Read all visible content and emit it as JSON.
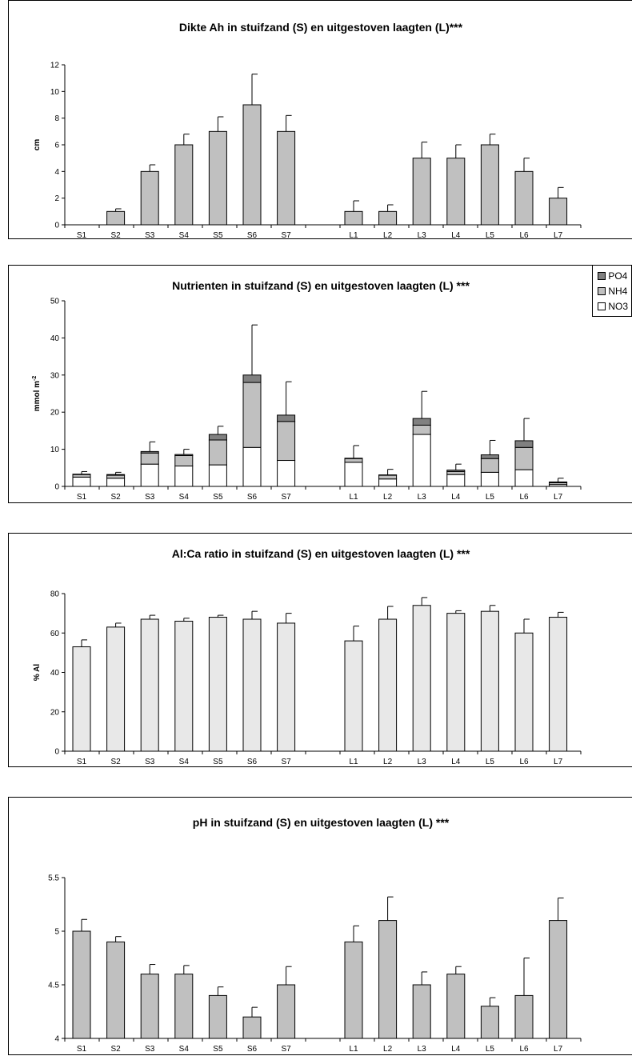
{
  "colors": {
    "dark": "#808080",
    "mid": "#c0c0c0",
    "light": "#e8e8e8",
    "white": "#ffffff"
  },
  "chart_data": [
    {
      "type": "bar",
      "title": "Dikte Ah in stuifzand (S) en uitgestoven laagten (L)***",
      "ylabel": "cm",
      "ylim": [
        0,
        12
      ],
      "yticks": [
        "0",
        "2",
        "4",
        "6",
        "8",
        "10",
        "12"
      ],
      "categories": [
        "S1",
        "S2",
        "S3",
        "S4",
        "S5",
        "S6",
        "S7",
        "L1",
        "L2",
        "L3",
        "L4",
        "L5",
        "L6",
        "L7"
      ],
      "values": [
        0,
        1,
        4,
        6,
        7,
        9,
        7,
        1,
        1,
        5,
        5,
        6,
        4,
        2
      ],
      "error": [
        0,
        0.2,
        0.5,
        0.8,
        1.1,
        2.3,
        1.2,
        0.8,
        0.5,
        1.2,
        1.0,
        0.8,
        1.0,
        0.8
      ],
      "bar_color": "#c0c0c0"
    },
    {
      "type": "bar",
      "stacked": true,
      "title": "Nutrienten in stuifzand (S) en uitgestoven laagten (L) ***",
      "ylabel": "mmol m",
      "ylabel_sup": "-2",
      "ylim": [
        0,
        50
      ],
      "yticks": [
        "0",
        "10",
        "20",
        "30",
        "40",
        "50"
      ],
      "categories": [
        "S1",
        "S2",
        "S3",
        "S4",
        "S5",
        "S6",
        "S7",
        "L1",
        "L2",
        "L3",
        "L4",
        "L5",
        "L6",
        "L7"
      ],
      "series": [
        {
          "name": "NO3",
          "color": "#ffffff",
          "values": [
            2.5,
            2.2,
            6,
            5.5,
            5.8,
            10.5,
            7,
            6.5,
            2,
            14,
            3.2,
            3.8,
            4.5,
            0.5
          ]
        },
        {
          "name": "NH4",
          "color": "#c0c0c0",
          "values": [
            0.7,
            0.8,
            3,
            2.8,
            6.7,
            17.5,
            10.5,
            1,
            1,
            2.5,
            0.8,
            3.7,
            6,
            0.5
          ]
        },
        {
          "name": "PO4",
          "color": "#808080",
          "values": [
            0.1,
            0.2,
            0.4,
            0.3,
            1.5,
            2,
            1.7,
            0.1,
            0.1,
            1.8,
            0.4,
            1,
            1.8,
            0.2
          ]
        }
      ],
      "error_top": [
        4,
        3.8,
        12,
        10,
        16.2,
        43.5,
        28.2,
        11,
        4.6,
        25.6,
        6,
        12.4,
        18.3,
        2.2
      ],
      "legend": [
        "PO4",
        "NH4",
        "NO3"
      ]
    },
    {
      "type": "bar",
      "title": "Al:Ca ratio in stuifzand (S) en uitgestoven laagten (L) ***",
      "ylabel": "% Al",
      "ylim": [
        0,
        80
      ],
      "yticks": [
        "0",
        "20",
        "40",
        "60",
        "80"
      ],
      "categories": [
        "S1",
        "S2",
        "S3",
        "S4",
        "S5",
        "S6",
        "S7",
        "L1",
        "L2",
        "L3",
        "L4",
        "L5",
        "L6",
        "L7"
      ],
      "values": [
        53,
        63,
        67,
        66,
        68,
        67,
        65,
        56,
        67,
        74,
        70,
        71,
        60,
        68
      ],
      "error": [
        3.5,
        2,
        2,
        1.5,
        1,
        4,
        5,
        7.5,
        6.5,
        4,
        1.3,
        3,
        7,
        2.5
      ],
      "bar_color": "#e8e8e8"
    },
    {
      "type": "bar",
      "title": "pH in stuifzand (S) en uitgestoven laagten (L) ***",
      "ylabel": "",
      "ylim": [
        4,
        5.5
      ],
      "yticks": [
        "4",
        "4.5",
        "5",
        "5.5"
      ],
      "categories": [
        "S1",
        "S2",
        "S3",
        "S4",
        "S5",
        "S6",
        "S7",
        "L1",
        "L2",
        "L3",
        "L4",
        "L5",
        "L6",
        "L7"
      ],
      "values": [
        5,
        4.9,
        4.6,
        4.6,
        4.4,
        4.2,
        4.5,
        4.9,
        5.1,
        4.5,
        4.6,
        4.3,
        4.4,
        5.1
      ],
      "error": [
        0.11,
        0.05,
        0.09,
        0.08,
        0.08,
        0.09,
        0.17,
        0.15,
        0.22,
        0.12,
        0.07,
        0.08,
        0.35,
        0.21
      ],
      "bar_color": "#c0c0c0"
    }
  ]
}
